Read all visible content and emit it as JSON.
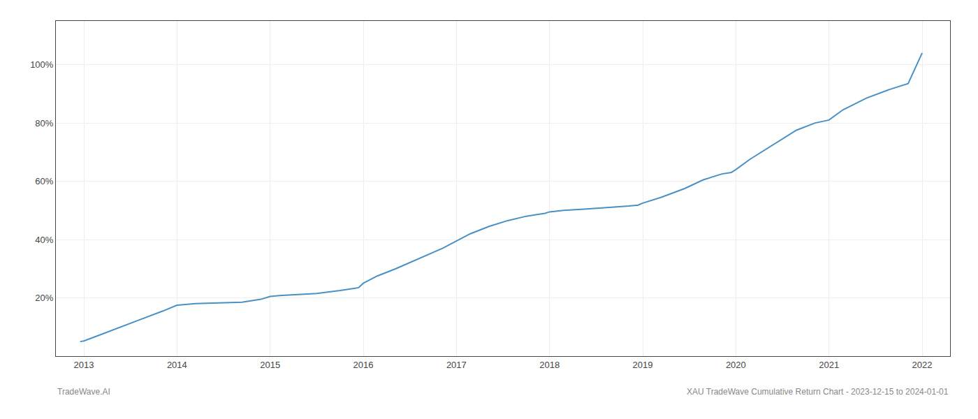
{
  "chart_data": {
    "type": "line",
    "x": [
      2012.96,
      2013.0,
      2013.15,
      2013.35,
      2013.6,
      2013.85,
      2014.0,
      2014.2,
      2014.45,
      2014.7,
      2014.9,
      2015.0,
      2015.1,
      2015.25,
      2015.5,
      2015.75,
      2015.95,
      2016.0,
      2016.15,
      2016.35,
      2016.6,
      2016.85,
      2017.0,
      2017.15,
      2017.35,
      2017.55,
      2017.75,
      2017.95,
      2018.0,
      2018.15,
      2018.4,
      2018.65,
      2018.85,
      2018.95,
      2019.0,
      2019.2,
      2019.45,
      2019.65,
      2019.85,
      2019.95,
      2020.0,
      2020.15,
      2020.4,
      2020.65,
      2020.85,
      2021.0,
      2021.15,
      2021.4,
      2021.65,
      2021.85,
      2022.0
    ],
    "values": [
      5.0,
      5.2,
      7.0,
      9.5,
      12.5,
      15.5,
      17.5,
      18.0,
      18.3,
      18.5,
      19.5,
      20.5,
      20.8,
      21.0,
      21.5,
      22.5,
      23.5,
      25.0,
      27.5,
      30.0,
      33.5,
      37.0,
      39.5,
      42.0,
      44.5,
      46.5,
      48.0,
      49.0,
      49.5,
      50.0,
      50.5,
      51.0,
      51.5,
      51.8,
      52.5,
      54.5,
      57.5,
      60.5,
      62.5,
      63.0,
      64.0,
      67.5,
      72.5,
      77.5,
      80.0,
      81.0,
      84.5,
      88.5,
      91.5,
      93.5,
      104.0
    ],
    "color": "#4a90c4",
    "xlim": [
      2012.7,
      2022.3
    ],
    "xticks": [
      2013,
      2014,
      2015,
      2016,
      2017,
      2018,
      2019,
      2020,
      2021,
      2022
    ],
    "ylim": [
      0,
      115
    ],
    "yticks": [
      {
        "value": 20,
        "label": "20%"
      },
      {
        "value": 40,
        "label": "40%"
      },
      {
        "value": 60,
        "label": "60%"
      },
      {
        "value": 80,
        "label": "80%"
      },
      {
        "value": 100,
        "label": "100%"
      }
    ],
    "grid": true,
    "annotations": [
      "TradeWave.AI",
      "XAU TradeWave Cumulative Return Chart - 2023-12-15 to 2024-01-01"
    ]
  }
}
